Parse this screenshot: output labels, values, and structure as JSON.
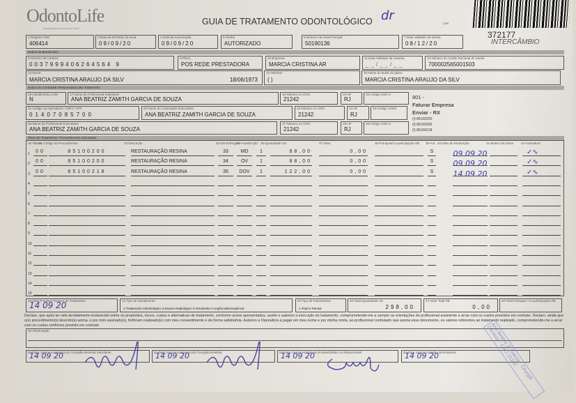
{
  "header": {
    "logo_text": "OdontoLife",
    "logo_tagline": "tranquilidade para você sorrir",
    "title": "GUIA DE TRATAMENTO ODONTOLÓGICO",
    "handwritten_initials": "dr",
    "guide_label": "2-Nº",
    "guide_number": "372177",
    "guide_type": "INTERCÂMBIO"
  },
  "fields": {
    "f1": {
      "label": "1-Registro ANS",
      "value": "406414"
    },
    "f3": {
      "label": "3-Data da Emissão da Guia",
      "value": "09/09/20"
    },
    "f4": {
      "label": "4-Data da Autorização",
      "value": "09/09/20"
    },
    "f5": {
      "label": "5-Senha",
      "value": "AUTORIZADO"
    },
    "f6": {
      "label": "6-Número da Guia Principal",
      "value": "50190136"
    },
    "f7": {
      "label": "7-Data Validade da Senha",
      "value": "08/12/20"
    },
    "sec_beneficiario": "Dados do Beneficiário",
    "f8": {
      "label": "8-Número da Carteira",
      "value": "0037999406264564 9"
    },
    "f9": {
      "label": "9-Plano",
      "value": "POS REDE PRESTADORA"
    },
    "f10": {
      "label": "10-Empresa",
      "value": "MARCIA CRISTINA AR"
    },
    "f11": {
      "label": "11-Data Validade da Carteira",
      "value": "__/__/__"
    },
    "f12": {
      "label": "12-Número do Cartão Nacional de Saúde",
      "value": "700002565001503"
    },
    "f13": {
      "label": "13-Nome",
      "value": "MARCIA CRISTINA ARAUJO DA SILV",
      "birth": "18/06/1973"
    },
    "f14": {
      "label": "14-Telefone",
      "value": "(  )"
    },
    "f15": {
      "label": "15-Nome do titular do plano",
      "value": "MARCIA CRISTINA ARAUJO DA SILV"
    },
    "sec_contratado": "Dados do Contratado Responsável pelo Tratamento",
    "f16": {
      "label": "16-Atendimento a RN",
      "value": "N"
    },
    "f17": {
      "label": "17-Nome do Profissional Solicitante",
      "value": "ANA BEATRIZ ZAMITH GARCIA DE SOUZA"
    },
    "f18": {
      "label": "18-Número no CRO",
      "value": "21242"
    },
    "f19": {
      "label": "19-UF",
      "value": "RJ"
    },
    "f20": {
      "label": "20-Código CBO S",
      "value": ""
    },
    "f21": {
      "label": "21-Código na Operadora / CNPJ / CPF",
      "value": "01407085700"
    },
    "f22": {
      "label": "22-Nome do Contratado Executante",
      "value": "ANA BEATRIZ ZAMITH GARCIA DE SOUZA"
    },
    "f23": {
      "label": "23-Número no CRO",
      "value": "21242"
    },
    "f24": {
      "label": "24-UF",
      "value": "RJ"
    },
    "f25": {
      "label": "25-Código CNES",
      "value": ""
    },
    "f26": {
      "label": "26-Nome do Profissional Executante",
      "value": "ANA BEATRIZ ZAMITH GARCIA DE SOUZA"
    },
    "f27": {
      "label": "27-Número no CRO",
      "value": "21242"
    },
    "f28": {
      "label": "28-UF",
      "value": "RJ"
    },
    "f29": {
      "label": "29-Código CBO S",
      "value": ""
    },
    "notes": [
      "801 -",
      "Faturar Empresa",
      "Enviar - RX",
      "(I) 85100200",
      "(I) 85100200",
      "(I) 85100218"
    ]
  },
  "procedures": {
    "section": "Plano de Tratamento / Procedimentos Solicitados",
    "headers": [
      "30-Tabela",
      "31-Código do Procedimento",
      "32-Descrição",
      "33-Dente/Região",
      "34-Face",
      "35-Qtd",
      "36-Quantidade US",
      "37-Valor",
      "38-Franquia/Co-participação R$",
      "39-Aut.",
      "40-Data de Realização",
      "41-Motivo da Glosa",
      "42-Assinatura"
    ],
    "rows": [
      {
        "n": "1",
        "table": "00",
        "code": "85100200",
        "desc": "RESTAURAÇÃO RESINA",
        "tooth": "33",
        "face": "MD",
        "qty": "1",
        "us": "88,00",
        "value": "0,00",
        "aut": "S",
        "date": "09 09 20"
      },
      {
        "n": "2",
        "table": "00",
        "code": "85100200",
        "desc": "RESTAURAÇÃO RESINA",
        "tooth": "34",
        "face": "OV",
        "qty": "1",
        "us": "88,00",
        "value": "0,00",
        "aut": "S",
        "date": "09 09 20"
      },
      {
        "n": "3",
        "table": "00",
        "code": "85100218",
        "desc": "RESTAURAÇÃO RESINA",
        "tooth": "35",
        "face": "DOV",
        "qty": "1",
        "us": "122,00",
        "value": "0,00",
        "aut": "S",
        "date": "14 09 20"
      },
      {
        "n": "4"
      },
      {
        "n": "5"
      },
      {
        "n": "6"
      },
      {
        "n": "7"
      },
      {
        "n": "8"
      },
      {
        "n": "9"
      },
      {
        "n": "10"
      },
      {
        "n": "11"
      },
      {
        "n": "12"
      },
      {
        "n": "13"
      },
      {
        "n": "14"
      },
      {
        "n": "15"
      }
    ]
  },
  "footer": {
    "f43": {
      "label": "43-Data Provável Término do Tratamento",
      "value": "14 09 20"
    },
    "f44": {
      "label": "44-Tipo de Atendimento",
      "value": "1-Tratamento Odontológico 2-Exame Radiológico 3-Ortodontia 4-Urgência/Emergência"
    },
    "f45": {
      "label": "45-Tipo de Faturamento",
      "value": "1-Total 2-Parcial"
    },
    "f46": {
      "label": "46-Total Quantidade US",
      "value": "298,00"
    },
    "f47": {
      "label": "47-Valor Total R$",
      "value": "0,00"
    },
    "f48": {
      "label": "48-Total Franquia / Co-participação R$",
      "value": ""
    },
    "declaration": "Declaro, que após ter sido devidamente esclarecido sobre os propósitos, riscos, custos e alternativas de tratamento, conforme acima apresentados, aceito e autorizo a execução do tratamento, comprometendo-me a cumprir as orientações do profissional assistente e arcar com os custos previstos em contrato. Declaro, ainda que o(s) procedimento(s) descrito(s) acima, e por mim assinado(s), foi/foram realizado(s) com meu consentimento e de forma satisfatória. Autorizo a Operadora a pagar em meu nome e por minha conta, ao profissional contratado que assina esse documento, os valores referentes ao tratamento realizado, comprometendo-me a arcar com os custos conforme previsto em contrato.",
    "f49": {
      "label": "49-Observação",
      "value": ""
    },
    "f50": {
      "label": "50-Data, local e Assinatura do Cirurgião-Dentista Solicitante",
      "value": "14 09 20"
    },
    "f51": {
      "label": "51-Data, local e Assinatura do Cirurgião-Dentista",
      "value": "14 09 20"
    },
    "f52": {
      "label": "52-Data, local e Assinatura do Beneficiário ou Responsável",
      "value": "14 09 20"
    },
    "f53": {
      "label": "53-Data, local e Carimbo da Empresa",
      "value": "14 09 20"
    },
    "stamp": "Ana Beatriz Z. Garcia · Cirurgiã Dentista · CRO 21242"
  },
  "colors": {
    "ink": "#3b3aa0",
    "stamp": "#6a74c8",
    "section_bar": "#a9a7a2"
  }
}
